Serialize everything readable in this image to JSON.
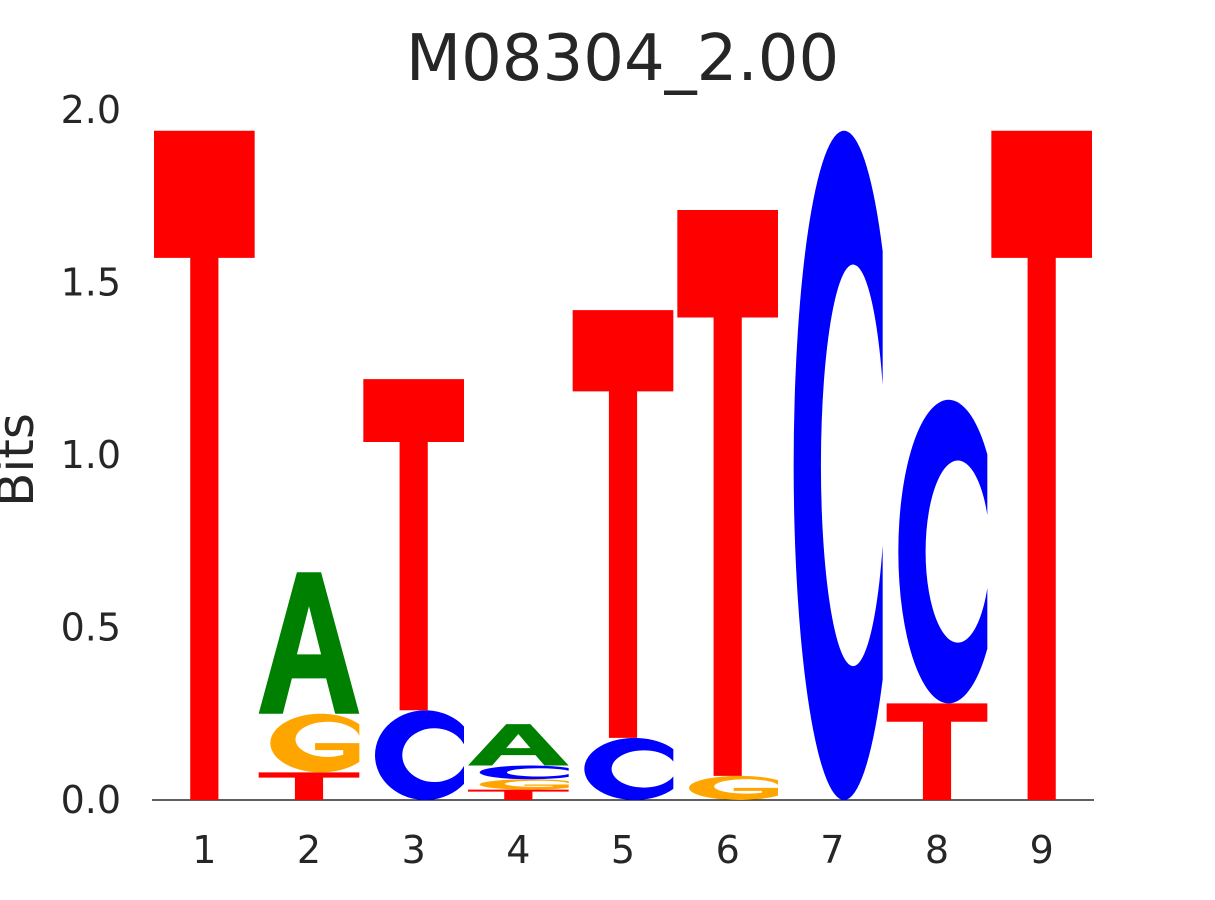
{
  "chart_data": {
    "type": "sequence-logo",
    "title": "M08304_2.00",
    "ylabel": "Bits",
    "ylim": [
      0,
      2.0
    ],
    "yticks": [
      "0.0",
      "0.5",
      "1.0",
      "1.5",
      "2.0"
    ],
    "positions": [
      "1",
      "2",
      "3",
      "4",
      "5",
      "6",
      "7",
      "8",
      "9"
    ],
    "colors": {
      "A": "#008000",
      "C": "#0000ff",
      "G": "#ffa500",
      "T": "#ff0000"
    },
    "columns": [
      [
        {
          "letter": "T",
          "bits": 1.94
        }
      ],
      [
        {
          "letter": "T",
          "bits": 0.08
        },
        {
          "letter": "G",
          "bits": 0.17
        },
        {
          "letter": "A",
          "bits": 0.41
        }
      ],
      [
        {
          "letter": "C",
          "bits": 0.26
        },
        {
          "letter": "T",
          "bits": 0.96
        }
      ],
      [
        {
          "letter": "T",
          "bits": 0.03
        },
        {
          "letter": "G",
          "bits": 0.03
        },
        {
          "letter": "C",
          "bits": 0.04
        },
        {
          "letter": "A",
          "bits": 0.12
        }
      ],
      [
        {
          "letter": "C",
          "bits": 0.18
        },
        {
          "letter": "T",
          "bits": 1.24
        }
      ],
      [
        {
          "letter": "G",
          "bits": 0.07
        },
        {
          "letter": "T",
          "bits": 1.64
        }
      ],
      [
        {
          "letter": "C",
          "bits": 1.94
        }
      ],
      [
        {
          "letter": "T",
          "bits": 0.28
        },
        {
          "letter": "C",
          "bits": 0.88
        }
      ],
      [
        {
          "letter": "T",
          "bits": 1.94
        }
      ]
    ]
  }
}
